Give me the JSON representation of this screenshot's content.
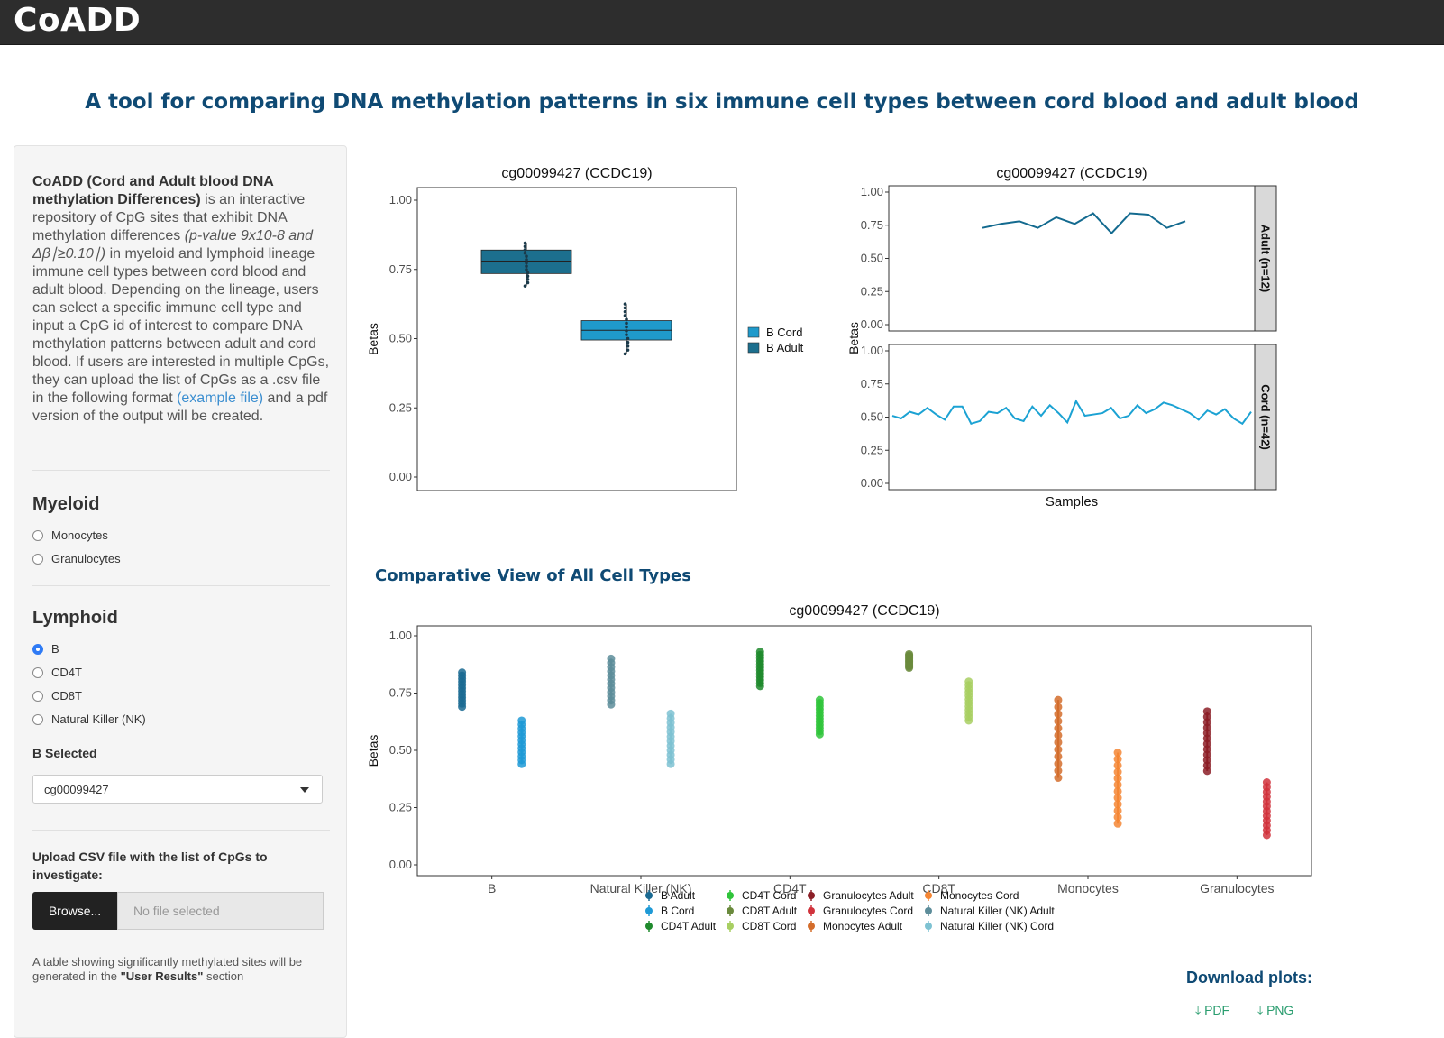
{
  "header": {
    "brand": "CoADD"
  },
  "page": {
    "title": "A tool for comparing DNA methylation patterns in six immune cell types between cord blood and adult blood"
  },
  "sidebar": {
    "intro_bold": "CoADD (Cord and Adult blood DNA methylation Differences)",
    "intro_1": " is an interactive repository of CpG sites that exhibit DNA methylation differences ",
    "intro_italic": "(p-value 9x10-8 and Δβ∣≥0.10∣)",
    "intro_2": " in myeloid and lymphoid lineage immune cell types between cord blood and adult blood. Depending on the lineage, users can select a specific immune cell type and input a CpG id of interest to compare DNA methylation patterns between adult and cord blood. If users are interested in multiple CpGs, they can upload the list of CpGs as a .csv file in the following format ",
    "example_link": "(example file)",
    "intro_3": " and a pdf version of the output will be created.",
    "myeloid": {
      "title": "Myeloid",
      "options": [
        "Monocytes",
        "Granulocytes"
      ]
    },
    "lymphoid": {
      "title": "Lymphoid",
      "options": [
        "B",
        "CD4T",
        "CD8T",
        "Natural Killer (NK)"
      ],
      "selected": "B"
    },
    "select_label": "B Selected",
    "select_value": "cg00099427",
    "upload_label": "Upload CSV file with the list of CpGs to investigate:",
    "browse_label": "Browse...",
    "no_file": "No file selected",
    "note_1": "A table showing significantly methylated sites will be generated in the ",
    "note_bold": "\"User Results\"",
    "note_2": " section"
  },
  "main": {
    "comparative_title": "Comparative View of All Cell Types",
    "download_title": "Download plots:",
    "download_pdf": "PDF",
    "download_png": "PNG"
  },
  "colors": {
    "navbar": "#2d2d2d",
    "title": "#0f4a74",
    "selected_radio": "#2f7bf5",
    "download": "#2a9d6f"
  },
  "chart_data": [
    {
      "type": "box",
      "title": "cg00099427 (CCDC19)",
      "ylabel": "Betas",
      "ylim": [
        0,
        1
      ],
      "yticks": [
        "0.00",
        "0.25",
        "0.50",
        "0.75",
        "1.00"
      ],
      "legend_position": "right",
      "series": [
        {
          "name": "B Cord",
          "color": "#1f9acb",
          "q1": 0.495,
          "median": 0.53,
          "q3": 0.565,
          "min": 0.445,
          "max": 0.625
        },
        {
          "name": "B Adult",
          "color": "#1c6f8e",
          "q1": 0.735,
          "median": 0.78,
          "q3": 0.82,
          "min": 0.69,
          "max": 0.845
        }
      ]
    },
    {
      "type": "line",
      "title": "cg00099427 (CCDC19)",
      "xlabel": "Samples",
      "ylabel": "Betas",
      "ylim": [
        0,
        1
      ],
      "yticks": [
        "0.00",
        "0.25",
        "0.50",
        "0.75",
        "1.00"
      ],
      "facets": [
        {
          "label": "Adult (n=12)",
          "color": "#136a8f",
          "values": [
            0.73,
            0.76,
            0.78,
            0.73,
            0.81,
            0.76,
            0.84,
            0.69,
            0.84,
            0.83,
            0.73,
            0.78
          ]
        },
        {
          "label": "Cord (n=42)",
          "color": "#1ba2d3",
          "values": [
            0.51,
            0.49,
            0.54,
            0.52,
            0.57,
            0.52,
            0.48,
            0.58,
            0.58,
            0.45,
            0.47,
            0.54,
            0.53,
            0.57,
            0.49,
            0.47,
            0.58,
            0.51,
            0.59,
            0.53,
            0.46,
            0.62,
            0.51,
            0.52,
            0.53,
            0.57,
            0.49,
            0.51,
            0.59,
            0.53,
            0.56,
            0.61,
            0.59,
            0.56,
            0.53,
            0.48,
            0.55,
            0.52,
            0.56,
            0.49,
            0.45,
            0.54
          ]
        }
      ]
    },
    {
      "type": "scatter",
      "title": "cg00099427 (CCDC19)",
      "ylabel": "Betas",
      "ylim": [
        0,
        1
      ],
      "yticks": [
        "0.00",
        "0.25",
        "0.50",
        "0.75",
        "1.00"
      ],
      "categories": [
        "B",
        "Natural Killer (NK)",
        "CD4T",
        "CD8T",
        "Monocytes",
        "Granulocytes"
      ],
      "series": [
        {
          "name": "B Adult",
          "category": "B",
          "offset": -1,
          "color": "#1a6a92",
          "min": 0.69,
          "max": 0.84
        },
        {
          "name": "B Cord",
          "category": "B",
          "offset": 1,
          "color": "#1f9ad6",
          "min": 0.44,
          "max": 0.63
        },
        {
          "name": "Natural Killer (NK) Adult",
          "category": "Natural Killer (NK)",
          "offset": -1,
          "color": "#5d8d9a",
          "min": 0.7,
          "max": 0.9
        },
        {
          "name": "Natural Killer (NK) Cord",
          "category": "Natural Killer (NK)",
          "offset": 1,
          "color": "#7ec2d2",
          "min": 0.44,
          "max": 0.66
        },
        {
          "name": "CD4T Adult",
          "category": "CD4T",
          "offset": -1,
          "color": "#1f8a2d",
          "min": 0.78,
          "max": 0.93
        },
        {
          "name": "CD4T Cord",
          "category": "CD4T",
          "offset": 1,
          "color": "#2fc43a",
          "min": 0.57,
          "max": 0.72
        },
        {
          "name": "CD8T Adult",
          "category": "CD8T",
          "offset": -1,
          "color": "#6a8a3c",
          "min": 0.86,
          "max": 0.92
        },
        {
          "name": "CD8T Cord",
          "category": "CD8T",
          "offset": 1,
          "color": "#a8cf62",
          "min": 0.63,
          "max": 0.8
        },
        {
          "name": "Monocytes Adult",
          "category": "Monocytes",
          "offset": -1,
          "color": "#d46d2b",
          "min": 0.38,
          "max": 0.72
        },
        {
          "name": "Monocytes Cord",
          "category": "Monocytes",
          "offset": 1,
          "color": "#f58634",
          "min": 0.18,
          "max": 0.49
        },
        {
          "name": "Granulocytes Adult",
          "category": "Granulocytes",
          "offset": -1,
          "color": "#8c1f27",
          "min": 0.41,
          "max": 0.67
        },
        {
          "name": "Granulocytes Cord",
          "category": "Granulocytes",
          "offset": 1,
          "color": "#d1333c",
          "min": 0.13,
          "max": 0.36
        }
      ],
      "legend_position": "bottom",
      "legend": [
        [
          "B Adult",
          "B Cord",
          "CD4T Adult"
        ],
        [
          "CD4T Cord",
          "CD8T Adult",
          "CD8T Cord"
        ],
        [
          "Granulocytes Adult",
          "Granulocytes Cord",
          "Monocytes Adult"
        ],
        [
          "Monocytes Cord",
          "Natural Killer (NK) Adult",
          "Natural Killer (NK) Cord"
        ]
      ]
    }
  ]
}
